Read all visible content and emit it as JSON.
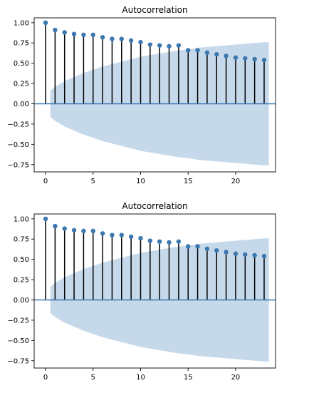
{
  "chart_data": [
    {
      "type": "stem",
      "title": "Autocorrelation",
      "xlabel": "",
      "ylabel": "",
      "xlim": [
        -1.2,
        24.2
      ],
      "ylim": [
        -0.84,
        1.06
      ],
      "xticks": [
        0,
        5,
        10,
        15,
        20
      ],
      "yticks": [
        1.0,
        0.75,
        0.5,
        0.25,
        0.0,
        -0.25,
        -0.5,
        -0.75
      ],
      "ytick_labels": [
        "1.00",
        "0.75",
        "0.50",
        "0.25",
        "0.00",
        "−0.25",
        "−0.50",
        "−0.75"
      ],
      "grid": false,
      "lags": [
        0,
        1,
        2,
        3,
        4,
        5,
        6,
        7,
        8,
        9,
        10,
        11,
        12,
        13,
        14,
        15,
        16,
        17,
        18,
        19,
        20,
        21,
        22,
        23
      ],
      "values": [
        1.0,
        0.91,
        0.88,
        0.86,
        0.85,
        0.85,
        0.82,
        0.8,
        0.8,
        0.78,
        0.76,
        0.73,
        0.72,
        0.71,
        0.72,
        0.66,
        0.66,
        0.63,
        0.61,
        0.59,
        0.57,
        0.56,
        0.55,
        0.54
      ],
      "confint_x": [
        0.5,
        1,
        2,
        3,
        4,
        5,
        6,
        7,
        8,
        9,
        10,
        11,
        12,
        13,
        14,
        15,
        16,
        17,
        18,
        19,
        20,
        21,
        22,
        23,
        23.5
      ],
      "confint_upper": [
        0.16,
        0.21,
        0.28,
        0.33,
        0.38,
        0.42,
        0.46,
        0.49,
        0.52,
        0.55,
        0.58,
        0.6,
        0.62,
        0.64,
        0.66,
        0.67,
        0.69,
        0.7,
        0.71,
        0.72,
        0.73,
        0.74,
        0.75,
        0.76,
        0.76
      ],
      "colors": {
        "stem": "#000000",
        "marker": "#3b78b0",
        "band": "#c6d9eb",
        "baseline": "#3b78b0"
      }
    },
    {
      "type": "stem",
      "title": "Autocorrelation",
      "xlabel": "",
      "ylabel": "",
      "xlim": [
        -1.2,
        24.2
      ],
      "ylim": [
        -0.84,
        1.06
      ],
      "xticks": [
        0,
        5,
        10,
        15,
        20
      ],
      "yticks": [
        1.0,
        0.75,
        0.5,
        0.25,
        0.0,
        -0.25,
        -0.5,
        -0.75
      ],
      "ytick_labels": [
        "1.00",
        "0.75",
        "0.50",
        "0.25",
        "0.00",
        "−0.25",
        "−0.50",
        "−0.75"
      ],
      "grid": false,
      "lags": [
        0,
        1,
        2,
        3,
        4,
        5,
        6,
        7,
        8,
        9,
        10,
        11,
        12,
        13,
        14,
        15,
        16,
        17,
        18,
        19,
        20,
        21,
        22,
        23
      ],
      "values": [
        1.0,
        0.91,
        0.88,
        0.86,
        0.85,
        0.85,
        0.82,
        0.8,
        0.8,
        0.78,
        0.76,
        0.73,
        0.72,
        0.71,
        0.72,
        0.66,
        0.66,
        0.63,
        0.61,
        0.59,
        0.57,
        0.56,
        0.55,
        0.54
      ],
      "confint_x": [
        0.5,
        1,
        2,
        3,
        4,
        5,
        6,
        7,
        8,
        9,
        10,
        11,
        12,
        13,
        14,
        15,
        16,
        17,
        18,
        19,
        20,
        21,
        22,
        23,
        23.5
      ],
      "confint_upper": [
        0.16,
        0.21,
        0.28,
        0.33,
        0.38,
        0.42,
        0.46,
        0.49,
        0.52,
        0.55,
        0.58,
        0.6,
        0.62,
        0.64,
        0.66,
        0.67,
        0.69,
        0.7,
        0.71,
        0.72,
        0.73,
        0.74,
        0.75,
        0.76,
        0.76
      ],
      "colors": {
        "stem": "#000000",
        "marker": "#3b78b0",
        "band": "#c6d9eb",
        "baseline": "#3b78b0"
      }
    }
  ]
}
